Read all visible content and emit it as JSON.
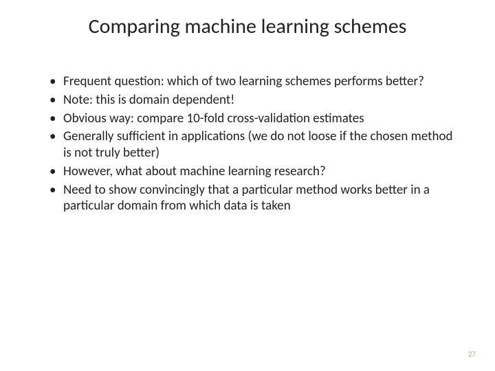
{
  "slide": {
    "title": "Comparing machine learning schemes",
    "bullets": [
      "Frequent question: which of two learning schemes performs better?",
      "Note: this is domain dependent!",
      "Obvious way: compare 10-fold cross-validation estimates",
      "Generally sufficient in applications (we do not loose if the chosen method is not truly better)",
      "However, what about machine learning research?",
      "Need to show convincingly that a particular method works better in a particular domain from which data is taken"
    ],
    "page_number": "27"
  },
  "styling": {
    "background_color": "#ffffff",
    "title_fontsize": 30,
    "title_color": "#222222",
    "body_fontsize": 19,
    "body_color": "#222222",
    "page_number_color": "#b8a88a",
    "page_number_fontsize": 11,
    "font_family": "Calibri"
  }
}
